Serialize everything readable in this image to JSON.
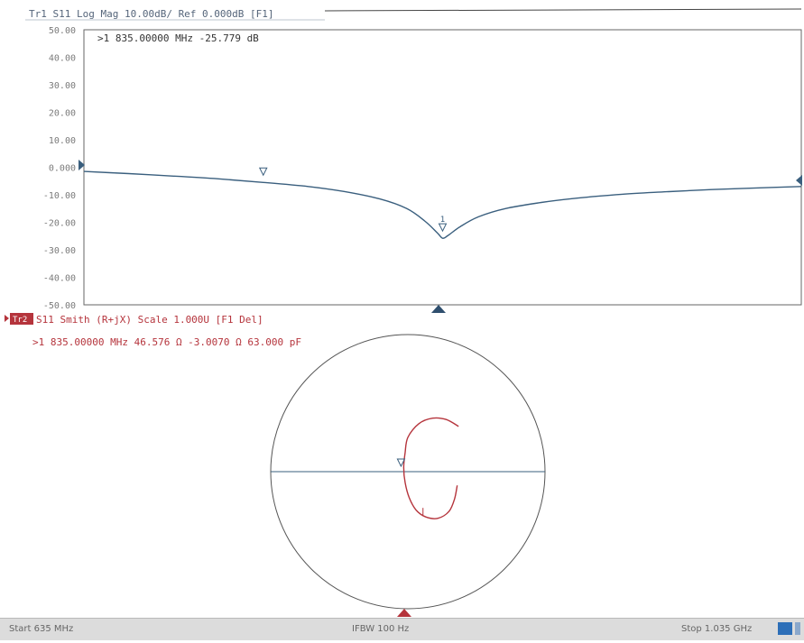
{
  "trace1": {
    "header": "Tr1 S11 Log Mag 10.00dB/ Ref 0.000dB [F1]",
    "marker_readout": ">1  835.00000 MHz -25.779 dB",
    "color": "#3a5f7e"
  },
  "trace2": {
    "header_badge": "Tr2",
    "header": "S11 Smith (R+jX) Scale 1.000U [F1 Del]",
    "marker_readout": ">1  835.00000 MHz  46.576 Ω  -3.0070 Ω  63.000 pF",
    "color": "#b5343c"
  },
  "status": {
    "start": "Start 635 MHz",
    "ifbw": "IFBW 100 Hz",
    "stop": "Stop 1.035 GHz"
  },
  "chart_data": [
    {
      "type": "line",
      "title": "Tr1 S11 Log Mag 10.00dB/ Ref 0.000dB [F1]",
      "xlabel": "",
      "ylabel": "",
      "x_unit": "MHz",
      "xlim": [
        635,
        1035
      ],
      "ylim": [
        -50,
        50
      ],
      "yticks": [
        "50.00",
        "40.00",
        "30.00",
        "20.00",
        "10.00",
        "0.000",
        "-10.00",
        "-20.00",
        "-30.00",
        "-40.00",
        "-50.00"
      ],
      "grid": false,
      "series": [
        {
          "x": [
            635,
            660,
            685,
            710,
            735,
            760,
            780,
            800,
            815,
            825,
            832,
            835,
            838,
            845,
            855,
            870,
            890,
            910,
            935,
            960,
            985,
            1010,
            1035
          ],
          "y": [
            -1.5,
            -2.3,
            -3.2,
            -4.2,
            -5.5,
            -7.0,
            -8.8,
            -11.5,
            -15.0,
            -19.5,
            -23.8,
            -25.8,
            -24.8,
            -21.5,
            -18.0,
            -15.0,
            -12.8,
            -11.2,
            -9.8,
            -8.9,
            -8.1,
            -7.5,
            -7.0
          ]
        }
      ],
      "markers": [
        {
          "label": "1",
          "x": 835,
          "y": -25.779
        },
        {
          "label": "",
          "x": 735,
          "y": -5.5
        }
      ]
    },
    {
      "type": "smith",
      "title": "S11 Smith (R+jX) Scale 1.000U [F1 Del]",
      "series": [
        {
          "gamma_real": [
            0.37,
            0.28,
            0.18,
            0.08,
            0.0,
            -0.02,
            -0.03,
            -0.02,
            0.01,
            0.06,
            0.13,
            0.22,
            0.3,
            0.34,
            0.36
          ],
          "gamma_imag": [
            0.33,
            0.38,
            0.39,
            0.35,
            0.25,
            0.14,
            0.03,
            -0.08,
            -0.19,
            -0.28,
            -0.33,
            -0.34,
            -0.29,
            -0.2,
            -0.1
          ]
        }
      ],
      "markers": [
        {
          "label": "1",
          "frequency_mhz": 835,
          "r_ohm": 46.576,
          "x_ohm": -3.007,
          "c_pf": 63.0
        }
      ]
    }
  ]
}
